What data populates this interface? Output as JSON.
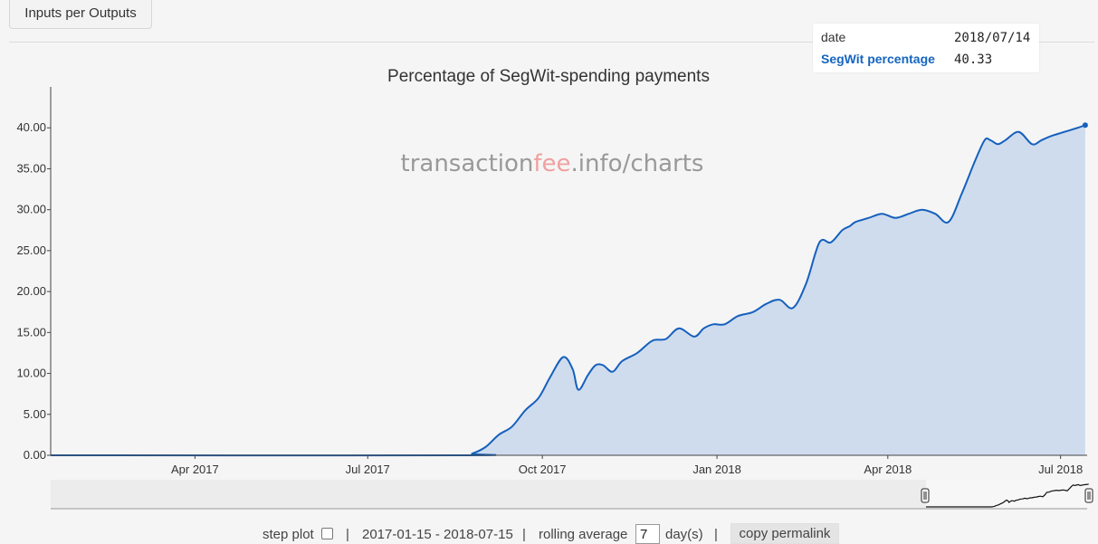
{
  "top_tab": {
    "label": "Inputs per Outputs"
  },
  "legend": {
    "date_label": "date",
    "date_value": "2018/07/14",
    "series_label": "SegWit percentage",
    "series_value": "40.33"
  },
  "watermark": {
    "part1": "transaction",
    "part2": "fee",
    "part3": ".info/charts"
  },
  "controls": {
    "step_plot_label": "step plot",
    "separator": "|",
    "date_range": "2017-01-15 - 2018-07-15",
    "rolling_label": "rolling average",
    "rolling_value": "7",
    "rolling_unit": "day(s)",
    "permalink_label": "copy permalink"
  },
  "colors": {
    "line": "#1560bd",
    "fill": "#cfdcee",
    "watermark_gray": "#999999",
    "watermark_red": "#f0a0a0"
  },
  "chart_data": {
    "type": "area",
    "title": "Percentage of SegWit-spending payments",
    "xlabel": "",
    "ylabel": "",
    "x_range": [
      "2017-01-15",
      "2018-07-15"
    ],
    "ylim": [
      0,
      45
    ],
    "y_ticks": [
      "0.00",
      "5.00",
      "10.00",
      "15.00",
      "20.00",
      "25.00",
      "30.00",
      "35.00",
      "40.00"
    ],
    "x_ticks": [
      {
        "date": "2017-04-01",
        "label": "Apr 2017"
      },
      {
        "date": "2017-07-01",
        "label": "Jul 2017"
      },
      {
        "date": "2017-10-01",
        "label": "Oct 2017"
      },
      {
        "date": "2018-01-01",
        "label": "Jan 2018"
      },
      {
        "date": "2018-04-01",
        "label": "Apr 2018"
      },
      {
        "date": "2018-07-01",
        "label": "Jul 2018"
      }
    ],
    "grid": false,
    "series": [
      {
        "name": "SegWit percentage",
        "x": [
          "2017-01-15",
          "2017-08-20",
          "2017-08-25",
          "2017-09-01",
          "2017-09-08",
          "2017-09-15",
          "2017-09-22",
          "2017-09-29",
          "2017-10-05",
          "2017-10-12",
          "2017-10-17",
          "2017-10-20",
          "2017-10-25",
          "2017-10-29",
          "2017-11-02",
          "2017-11-07",
          "2017-11-12",
          "2017-11-20",
          "2017-11-28",
          "2017-12-05",
          "2017-12-12",
          "2017-12-20",
          "2017-12-25",
          "2017-12-30",
          "2018-01-05",
          "2018-01-12",
          "2018-01-20",
          "2018-01-27",
          "2018-02-03",
          "2018-02-10",
          "2018-02-17",
          "2018-02-24",
          "2018-03-02",
          "2018-03-08",
          "2018-03-12",
          "2018-03-15",
          "2018-03-22",
          "2018-03-29",
          "2018-04-05",
          "2018-04-12",
          "2018-04-19",
          "2018-04-26",
          "2018-05-03",
          "2018-05-10",
          "2018-05-17",
          "2018-05-22",
          "2018-05-25",
          "2018-05-29",
          "2018-06-02",
          "2018-06-09",
          "2018-06-16",
          "2018-06-21",
          "2018-06-26",
          "2018-07-03",
          "2018-07-10",
          "2018-07-14"
        ],
        "values": [
          0,
          0,
          0.2,
          1.0,
          2.5,
          3.5,
          5.5,
          7.0,
          9.5,
          12.0,
          10.5,
          8.0,
          9.8,
          11.0,
          11.0,
          10.2,
          11.5,
          12.5,
          14.0,
          14.2,
          15.5,
          14.5,
          15.5,
          16.0,
          16.0,
          17.0,
          17.5,
          18.5,
          19.0,
          18.0,
          21.0,
          26.0,
          26.0,
          27.5,
          28.0,
          28.5,
          29.0,
          29.5,
          29.0,
          29.5,
          30.0,
          29.5,
          28.5,
          32.0,
          36.0,
          38.5,
          38.5,
          38.0,
          38.5,
          39.5,
          38.0,
          38.5,
          39.0,
          39.5,
          40.0,
          40.33
        ]
      }
    ]
  }
}
